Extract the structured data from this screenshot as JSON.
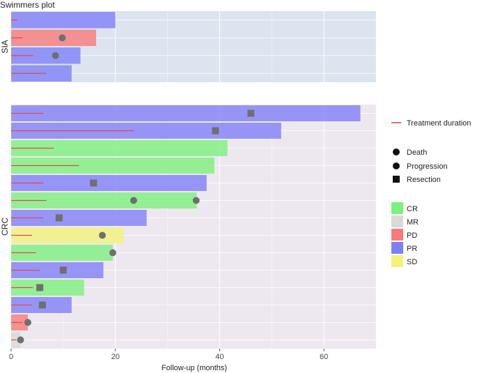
{
  "chart_data": {
    "type": "bar",
    "title": "Swimmers plot",
    "xlabel": "Follow-up (months)",
    "xlim": [
      0,
      70
    ],
    "x_ticks": [
      0,
      20,
      40,
      60
    ],
    "grid": true,
    "legend_position": "right",
    "colors": {
      "CR": "#7df07d",
      "MR": "#d9d9d9",
      "PD": "#f77b7b",
      "PR": "#7f7ff7",
      "SD": "#f3f37a",
      "treatment": "#e3494b",
      "marker": "#6f6f6f",
      "panel_sia_bg": "#dce4ef",
      "panel_crc_bg": "#ede8f0"
    },
    "legend": {
      "line": "Treatment duration",
      "markers": [
        {
          "shape": "circle",
          "label": "Death"
        },
        {
          "shape": "octagon",
          "label": "Progression"
        },
        {
          "shape": "square",
          "label": "Resection"
        }
      ],
      "responses": [
        "CR",
        "MR",
        "PD",
        "PR",
        "SD"
      ]
    },
    "panels": [
      {
        "label": "SIA",
        "subjects": [
          {
            "response": "PR",
            "followup": 20.0,
            "treatment": 1.2,
            "events": []
          },
          {
            "response": "PD",
            "followup": 16.3,
            "treatment": 2.2,
            "events": [
              {
                "type": "Progression",
                "x": 9.8
              }
            ]
          },
          {
            "response": "PR",
            "followup": 13.3,
            "treatment": 4.2,
            "events": [
              {
                "type": "Progression",
                "x": 8.5
              }
            ]
          },
          {
            "response": "PR",
            "followup": 11.6,
            "treatment": 6.8,
            "events": []
          }
        ]
      },
      {
        "label": "CRC",
        "subjects": [
          {
            "response": "PR",
            "followup": 67.0,
            "treatment": 6.2,
            "events": [
              {
                "type": "Resection",
                "x": 46.0
              }
            ]
          },
          {
            "response": "PR",
            "followup": 51.8,
            "treatment": 23.5,
            "events": [
              {
                "type": "Resection",
                "x": 39.2
              }
            ]
          },
          {
            "response": "CR",
            "followup": 41.5,
            "treatment": 8.2,
            "events": []
          },
          {
            "response": "CR",
            "followup": 39.0,
            "treatment": 13.0,
            "events": []
          },
          {
            "response": "PR",
            "followup": 37.5,
            "treatment": 6.2,
            "events": [
              {
                "type": "Resection",
                "x": 15.8
              }
            ]
          },
          {
            "response": "CR",
            "followup": 35.6,
            "treatment": 6.8,
            "events": [
              {
                "type": "Progression",
                "x": 23.5
              },
              {
                "type": "Progression",
                "x": 35.5
              }
            ]
          },
          {
            "response": "PR",
            "followup": 26.0,
            "treatment": 6.2,
            "events": [
              {
                "type": "Resection",
                "x": 9.2
              }
            ]
          },
          {
            "response": "SD",
            "followup": 21.6,
            "treatment": 4.0,
            "events": [
              {
                "type": "Progression",
                "x": 17.5
              }
            ]
          },
          {
            "response": "CR",
            "followup": 19.5,
            "treatment": 4.8,
            "events": [
              {
                "type": "Death",
                "x": 19.5
              }
            ]
          },
          {
            "response": "PR",
            "followup": 17.7,
            "treatment": 5.5,
            "events": [
              {
                "type": "Resection",
                "x": 10.0
              }
            ]
          },
          {
            "response": "CR",
            "followup": 14.0,
            "treatment": 4.2,
            "events": [
              {
                "type": "Resection",
                "x": 5.5
              }
            ]
          },
          {
            "response": "PR",
            "followup": 11.6,
            "treatment": 4.0,
            "events": [
              {
                "type": "Resection",
                "x": 6.0
              }
            ]
          },
          {
            "response": "PD",
            "followup": 3.2,
            "treatment": 2.2,
            "events": [
              {
                "type": "Death",
                "x": 3.2
              }
            ]
          },
          {
            "response": "MR",
            "followup": 1.8,
            "treatment": 1.0,
            "events": [
              {
                "type": "Death",
                "x": 1.8
              }
            ]
          }
        ]
      }
    ]
  }
}
